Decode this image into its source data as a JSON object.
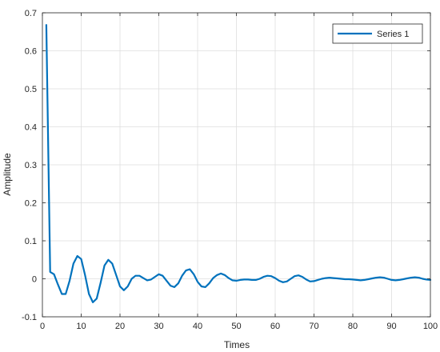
{
  "chart_data": {
    "type": "line",
    "xlabel": "Times",
    "ylabel": "Amplitude",
    "xlim": [
      0,
      100
    ],
    "ylim": [
      -0.1,
      0.7
    ],
    "x_ticks": [
      0,
      10,
      20,
      30,
      40,
      50,
      60,
      70,
      80,
      90,
      100
    ],
    "y_ticks": [
      -0.1,
      0,
      0.1,
      0.2,
      0.3,
      0.4,
      0.5,
      0.6,
      0.7
    ],
    "x_tick_labels": [
      "0",
      "10",
      "20",
      "30",
      "40",
      "50",
      "60",
      "70",
      "80",
      "90",
      "100"
    ],
    "y_tick_labels": [
      "-0.1",
      "0",
      "0.1",
      "0.2",
      "0.3",
      "0.4",
      "0.5",
      "0.6",
      "0.7"
    ],
    "grid": true,
    "legend_position": "top-right",
    "series": [
      {
        "name": "Series 1",
        "color": "#0072BD",
        "x": [
          1,
          2,
          3,
          4,
          5,
          6,
          7,
          8,
          9,
          10,
          11,
          12,
          13,
          14,
          15,
          16,
          17,
          18,
          19,
          20,
          21,
          22,
          23,
          24,
          25,
          26,
          27,
          28,
          29,
          30,
          31,
          32,
          33,
          34,
          35,
          36,
          37,
          38,
          39,
          40,
          41,
          42,
          43,
          44,
          45,
          46,
          47,
          48,
          49,
          50,
          51,
          52,
          53,
          54,
          55,
          56,
          57,
          58,
          59,
          60,
          61,
          62,
          63,
          64,
          65,
          66,
          67,
          68,
          69,
          70,
          71,
          72,
          73,
          74,
          75,
          76,
          77,
          78,
          79,
          80,
          81,
          82,
          83,
          84,
          85,
          86,
          87,
          88,
          89,
          90,
          91,
          92,
          93,
          94,
          95,
          96,
          97,
          98,
          99,
          100
        ],
        "values": [
          0.668,
          0.018,
          0.012,
          -0.015,
          -0.04,
          -0.04,
          -0.005,
          0.04,
          0.06,
          0.052,
          0.01,
          -0.04,
          -0.062,
          -0.052,
          -0.01,
          0.035,
          0.05,
          0.04,
          0.01,
          -0.02,
          -0.03,
          -0.02,
          0.0,
          0.008,
          0.008,
          0.002,
          -0.004,
          -0.002,
          0.005,
          0.012,
          0.008,
          -0.005,
          -0.018,
          -0.022,
          -0.012,
          0.008,
          0.022,
          0.025,
          0.012,
          -0.008,
          -0.02,
          -0.022,
          -0.012,
          0.002,
          0.01,
          0.014,
          0.01,
          0.002,
          -0.004,
          -0.005,
          -0.003,
          -0.002,
          -0.002,
          -0.003,
          -0.003,
          0.0,
          0.005,
          0.008,
          0.007,
          0.002,
          -0.005,
          -0.009,
          -0.007,
          0.0,
          0.007,
          0.009,
          0.005,
          -0.002,
          -0.007,
          -0.006,
          -0.003,
          0.0,
          0.002,
          0.003,
          0.002,
          0.001,
          0.0,
          -0.001,
          -0.001,
          -0.002,
          -0.003,
          -0.004,
          -0.003,
          -0.001,
          0.001,
          0.003,
          0.004,
          0.003,
          0.0,
          -0.003,
          -0.004,
          -0.003,
          -0.001,
          0.001,
          0.003,
          0.004,
          0.003,
          0.0,
          -0.002,
          -0.003
        ]
      }
    ]
  }
}
